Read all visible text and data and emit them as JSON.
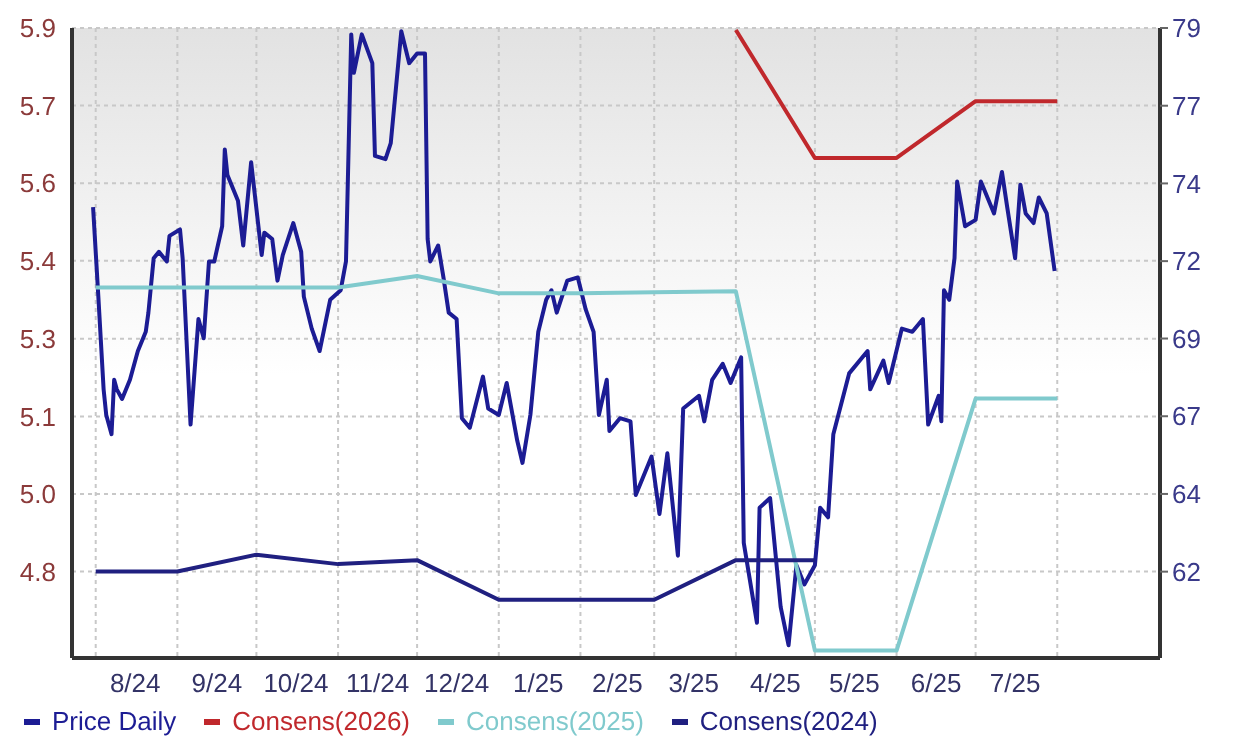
{
  "chart_data": {
    "type": "line",
    "legend": "bottom",
    "grid": true,
    "marker": "none",
    "line_style": "solid",
    "xlim": [
      "2024-07-23",
      "2025-09-09"
    ],
    "xticks": [
      {
        "value": "2024-08-01",
        "label": null
      },
      {
        "value": "2024-08-16",
        "label": "8/24"
      },
      {
        "value": "2024-09-01",
        "label": null
      },
      {
        "value": "2024-09-16",
        "label": "9/24"
      },
      {
        "value": "2024-10-01",
        "label": null
      },
      {
        "value": "2024-10-16",
        "label": "10/24"
      },
      {
        "value": "2024-11-01",
        "label": null
      },
      {
        "value": "2024-11-16",
        "label": "11/24"
      },
      {
        "value": "2024-12-01",
        "label": null
      },
      {
        "value": "2024-12-16",
        "label": "12/24"
      },
      {
        "value": "2025-01-01",
        "label": null
      },
      {
        "value": "2025-01-16",
        "label": "1/25"
      },
      {
        "value": "2025-02-01",
        "label": null
      },
      {
        "value": "2025-02-15",
        "label": "2/25"
      },
      {
        "value": "2025-03-01",
        "label": null
      },
      {
        "value": "2025-03-16",
        "label": "3/25"
      },
      {
        "value": "2025-04-01",
        "label": null
      },
      {
        "value": "2025-04-16",
        "label": "4/25"
      },
      {
        "value": "2025-05-01",
        "label": null
      },
      {
        "value": "2025-05-16",
        "label": "5/25"
      },
      {
        "value": "2025-06-01",
        "label": null
      },
      {
        "value": "2025-06-16",
        "label": "6/25"
      },
      {
        "value": "2025-07-01",
        "label": null
      },
      {
        "value": "2025-07-16",
        "label": "7/25"
      },
      {
        "value": "2025-08-01",
        "label": null
      }
    ],
    "ylim": [
      4.625,
      5.9
    ],
    "yticks": [
      {
        "value": 4.8,
        "label": "4.8"
      },
      {
        "value": 4.957,
        "label": "5.0"
      },
      {
        "value": 5.114,
        "label": "5.1"
      },
      {
        "value": 5.271,
        "label": "5.3"
      },
      {
        "value": 5.429,
        "label": "5.4"
      },
      {
        "value": 5.586,
        "label": "5.6"
      },
      {
        "value": 5.743,
        "label": "5.7"
      },
      {
        "value": 5.9,
        "label": "5.9"
      }
    ],
    "y2lim": [
      59.3,
      79
    ],
    "y2ticks": [
      {
        "value": 62,
        "label": "62"
      },
      {
        "value": 64.43,
        "label": "64"
      },
      {
        "value": 66.86,
        "label": "67"
      },
      {
        "value": 69.29,
        "label": "69"
      },
      {
        "value": 71.71,
        "label": "72"
      },
      {
        "value": 74.14,
        "label": "74"
      },
      {
        "value": 76.57,
        "label": "77"
      },
      {
        "value": 79,
        "label": "79"
      }
    ],
    "series": [
      {
        "name": "Price Daily",
        "color": "#1c1c94",
        "axis": "y2",
        "x": [
          "2024-07-31",
          "2024-08-02",
          "2024-08-04",
          "2024-08-05",
          "2024-08-07",
          "2024-08-08",
          "2024-08-09",
          "2024-08-11",
          "2024-08-14",
          "2024-08-17",
          "2024-08-20",
          "2024-08-21",
          "2024-08-23",
          "2024-08-25",
          "2024-08-28",
          "2024-08-29",
          "2024-09-02",
          "2024-09-03",
          "2024-09-06",
          "2024-09-09",
          "2024-09-11",
          "2024-09-13",
          "2024-09-15",
          "2024-09-18",
          "2024-09-19",
          "2024-09-20",
          "2024-09-24",
          "2024-09-26",
          "2024-09-29",
          "2024-10-03",
          "2024-10-04",
          "2024-10-07",
          "2024-10-09",
          "2024-10-11",
          "2024-10-15",
          "2024-10-18",
          "2024-10-19",
          "2024-10-22",
          "2024-10-25",
          "2024-10-29",
          "2024-11-02",
          "2024-11-04",
          "2024-11-06",
          "2024-11-07",
          "2024-11-10",
          "2024-11-14",
          "2024-11-15",
          "2024-11-19",
          "2024-11-21",
          "2024-11-25",
          "2024-11-28",
          "2024-12-01",
          "2024-12-04",
          "2024-12-05",
          "2024-12-06",
          "2024-12-09",
          "2024-12-11",
          "2024-12-13",
          "2024-12-16",
          "2024-12-18",
          "2024-12-21",
          "2024-12-26",
          "2024-12-28",
          "2025-01-01",
          "2025-01-04",
          "2025-01-08",
          "2025-01-10",
          "2025-01-13",
          "2025-01-16",
          "2025-01-19",
          "2025-01-21",
          "2025-01-23",
          "2025-01-27",
          "2025-01-31",
          "2025-02-03",
          "2025-02-06",
          "2025-02-08",
          "2025-02-11",
          "2025-02-12",
          "2025-02-16",
          "2025-02-20",
          "2025-02-22",
          "2025-02-25",
          "2025-02-28",
          "2025-03-03",
          "2025-03-06",
          "2025-03-10",
          "2025-03-12",
          "2025-03-18",
          "2025-03-20",
          "2025-03-23",
          "2025-03-27",
          "2025-03-30",
          "2025-04-03",
          "2025-04-04",
          "2025-04-09",
          "2025-04-10",
          "2025-04-14",
          "2025-04-18",
          "2025-04-21",
          "2025-04-24",
          "2025-04-27",
          "2025-05-01",
          "2025-05-03",
          "2025-05-06",
          "2025-05-08",
          "2025-05-14",
          "2025-05-21",
          "2025-05-22",
          "2025-05-27",
          "2025-05-29",
          "2025-06-03",
          "2025-06-07",
          "2025-06-11",
          "2025-06-13",
          "2025-06-17",
          "2025-06-18",
          "2025-06-19",
          "2025-06-21",
          "2025-06-23",
          "2025-06-24",
          "2025-06-27",
          "2025-07-01",
          "2025-07-03",
          "2025-07-08",
          "2025-07-11",
          "2025-07-13",
          "2025-07-16",
          "2025-07-18",
          "2025-07-20",
          "2025-07-23",
          "2025-07-25",
          "2025-07-28",
          "2025-07-31"
        ],
        "values": [
          73.4,
          70.6,
          67.7,
          66.9,
          66.3,
          68.0,
          67.7,
          67.4,
          68.0,
          68.9,
          69.5,
          70.1,
          71.8,
          72.0,
          71.7,
          72.5,
          72.7,
          71.8,
          66.6,
          69.9,
          69.3,
          71.7,
          71.7,
          72.8,
          75.2,
          74.4,
          73.6,
          72.2,
          74.8,
          71.9,
          72.6,
          72.4,
          71.1,
          71.9,
          72.9,
          72.0,
          70.6,
          69.6,
          68.9,
          70.5,
          70.8,
          71.7,
          78.8,
          77.6,
          78.8,
          77.9,
          75.0,
          74.9,
          75.4,
          78.9,
          77.9,
          78.2,
          78.2,
          72.4,
          71.7,
          72.2,
          71.2,
          70.1,
          69.9,
          66.8,
          66.5,
          68.1,
          67.1,
          66.9,
          67.9,
          66.1,
          65.4,
          66.9,
          69.5,
          70.5,
          70.8,
          70.1,
          71.1,
          71.2,
          70.2,
          69.5,
          66.9,
          68.0,
          66.4,
          66.8,
          66.7,
          64.4,
          65.0,
          65.6,
          63.8,
          65.7,
          62.5,
          67.1,
          67.5,
          66.7,
          68.0,
          68.5,
          67.9,
          68.7,
          62.9,
          60.4,
          64.0,
          64.3,
          60.9,
          59.7,
          62.2,
          61.6,
          62.2,
          64.0,
          63.7,
          66.3,
          68.2,
          68.9,
          67.7,
          68.6,
          67.9,
          69.6,
          69.5,
          69.9,
          66.6,
          67.5,
          66.7,
          70.8,
          70.5,
          71.8,
          74.2,
          72.8,
          73.0,
          74.2,
          73.2,
          74.5,
          73.4,
          71.8,
          74.1,
          73.2,
          72.9,
          73.7,
          73.2,
          71.4
        ]
      },
      {
        "name": "Consens(2026)",
        "color": "#c0282c",
        "x": [
          "2025-04-01",
          "2025-05-01",
          "2025-06-01",
          "2025-07-01",
          "2025-08-01"
        ],
        "values": [
          5.896,
          5.637,
          5.637,
          5.752,
          5.752
        ]
      },
      {
        "name": "Consens(2025)",
        "color": "#80cacd",
        "x": [
          "2024-08-01",
          "2024-09-01",
          "2024-10-01",
          "2024-11-01",
          "2024-12-01",
          "2025-01-01",
          "2025-02-01",
          "2025-03-01",
          "2025-04-01",
          "2025-05-01",
          "2025-06-01",
          "2025-07-01",
          "2025-08-01"
        ],
        "values": [
          5.375,
          5.375,
          5.375,
          5.375,
          5.398,
          5.363,
          5.363,
          5.365,
          5.367,
          4.64,
          4.64,
          5.15,
          5.15
        ]
      },
      {
        "name": "Consens(2024)",
        "color": "#202080",
        "x": [
          "2024-08-01",
          "2024-09-01",
          "2024-10-01",
          "2024-11-01",
          "2024-12-01",
          "2025-01-01",
          "2025-02-01",
          "2025-03-01",
          "2025-04-01",
          "2025-05-01"
        ],
        "values": [
          4.8,
          4.8,
          4.834,
          4.815,
          4.823,
          4.743,
          4.743,
          4.743,
          4.823,
          4.823
        ]
      }
    ]
  }
}
